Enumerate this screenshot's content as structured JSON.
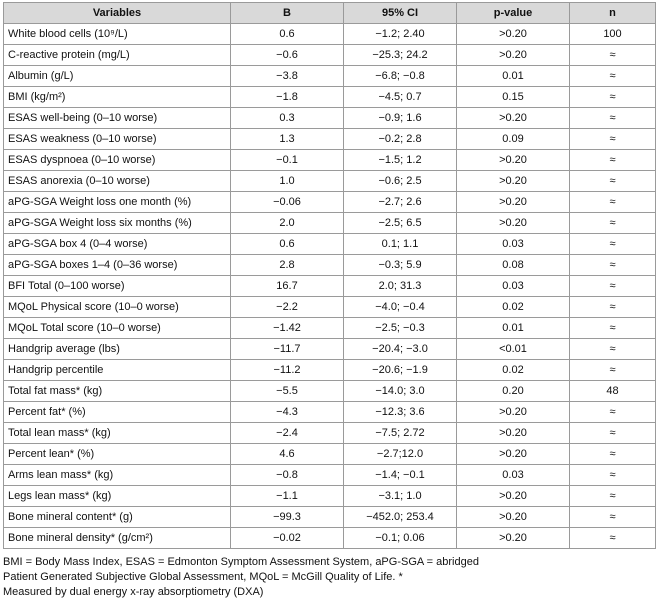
{
  "headers": [
    "Variables",
    "B",
    "95% CI",
    "p-value",
    "n"
  ],
  "rows": [
    {
      "variable": "White blood cells (10⁹/L)",
      "b": "0.6",
      "ci": "−1.2; 2.40",
      "p": ">0.20",
      "n": "100"
    },
    {
      "variable": "C-reactive protein (mg/L)",
      "b": "−0.6",
      "ci": "−25.3; 24.2",
      "p": ">0.20",
      "n": "≈"
    },
    {
      "variable": "Albumin (g/L)",
      "b": "−3.8",
      "ci": "−6.8; −0.8",
      "p": "0.01",
      "n": "≈"
    },
    {
      "variable": "BMI (kg/m²)",
      "b": "−1.8",
      "ci": "−4.5; 0.7",
      "p": "0.15",
      "n": "≈"
    },
    {
      "variable": "ESAS well-being (0–10 worse)",
      "b": "0.3",
      "ci": "−0.9; 1.6",
      "p": ">0.20",
      "n": "≈"
    },
    {
      "variable": "ESAS weakness (0–10 worse)",
      "b": "1.3",
      "ci": "−0.2; 2.8",
      "p": "0.09",
      "n": "≈"
    },
    {
      "variable": "ESAS dyspnoea (0–10 worse)",
      "b": "−0.1",
      "ci": "−1.5; 1.2",
      "p": ">0.20",
      "n": "≈"
    },
    {
      "variable": "ESAS anorexia (0–10 worse)",
      "b": "1.0",
      "ci": "−0.6; 2.5",
      "p": ">0.20",
      "n": "≈"
    },
    {
      "variable": "aPG-SGA Weight loss one month (%)",
      "b": "−0.06",
      "ci": "−2.7; 2.6",
      "p": ">0.20",
      "n": "≈"
    },
    {
      "variable": "aPG-SGA Weight loss six months (%)",
      "b": "2.0",
      "ci": "−2.5; 6.5",
      "p": ">0.20",
      "n": "≈"
    },
    {
      "variable": "aPG-SGA box 4 (0–4 worse)",
      "b": "0.6",
      "ci": "0.1; 1.1",
      "p": "0.03",
      "n": "≈"
    },
    {
      "variable": "aPG-SGA boxes 1–4 (0–36 worse)",
      "b": "2.8",
      "ci": "−0.3; 5.9",
      "p": "0.08",
      "n": "≈"
    },
    {
      "variable": "BFI Total (0–100 worse)",
      "b": "16.7",
      "ci": "2.0; 31.3",
      "p": "0.03",
      "n": "≈"
    },
    {
      "variable": "MQoL Physical score (10–0 worse)",
      "b": "−2.2",
      "ci": "−4.0; −0.4",
      "p": "0.02",
      "n": "≈"
    },
    {
      "variable": "MQoL Total score (10–0 worse)",
      "b": "−1.42",
      "ci": "−2.5; −0.3",
      "p": "0.01",
      "n": "≈"
    },
    {
      "variable": "Handgrip average (lbs)",
      "b": "−11.7",
      "ci": "−20.4; −3.0",
      "p": "<0.01",
      "n": "≈"
    },
    {
      "variable": "Handgrip percentile",
      "b": "−11.2",
      "ci": "−20.6; −1.9",
      "p": "0.02",
      "n": "≈"
    },
    {
      "variable": "Total fat mass* (kg)",
      "b": "−5.5",
      "ci": "−14.0; 3.0",
      "p": "0.20",
      "n": "48"
    },
    {
      "variable": "Percent fat* (%)",
      "b": "−4.3",
      "ci": "−12.3; 3.6",
      "p": ">0.20",
      "n": "≈"
    },
    {
      "variable": "Total lean mass* (kg)",
      "b": "−2.4",
      "ci": "−7.5; 2.72",
      "p": ">0.20",
      "n": "≈"
    },
    {
      "variable": "Percent lean* (%)",
      "b": "4.6",
      "ci": "−2.7;12.0",
      "p": ">0.20",
      "n": "≈"
    },
    {
      "variable": "Arms lean mass* (kg)",
      "b": "−0.8",
      "ci": "−1.4; −0.1",
      "p": "0.03",
      "n": "≈"
    },
    {
      "variable": "Legs lean mass* (kg)",
      "b": "−1.1",
      "ci": "−3.1; 1.0",
      "p": ">0.20",
      "n": "≈"
    },
    {
      "variable": "Bone mineral content* (g)",
      "b": "−99.3",
      "ci": "−452.0; 253.4",
      "p": ">0.20",
      "n": "≈"
    },
    {
      "variable": "Bone mineral density* (g/cm²)",
      "b": "−0.02",
      "ci": "−0.1; 0.06",
      "p": ">0.20",
      "n": "≈"
    }
  ],
  "footnote": [
    "BMI = Body Mass Index, ESAS = Edmonton Symptom Assessment System, aPG-SGA = abridged",
    "Patient Generated Subjective Global Assessment, MQoL = McGill Quality of Life. *",
    "Measured by dual energy x-ray absorptiometry (DXA)"
  ]
}
